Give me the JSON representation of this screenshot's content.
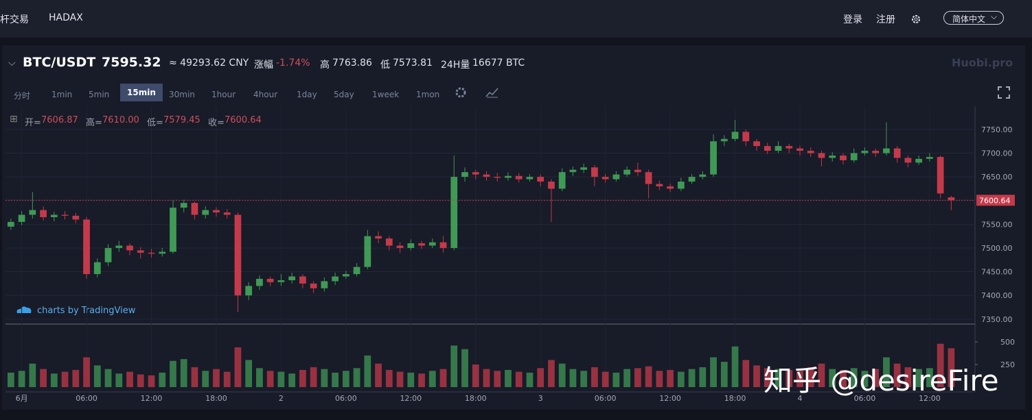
{
  "nav": {
    "left": [
      "杆交易",
      "HADAX"
    ],
    "right": [
      "登录",
      "注册"
    ],
    "language": "简体中文"
  },
  "ticker": {
    "pair": "BTC/USDT",
    "price": "7595.32",
    "cny": "≈ 49293.62 CNY",
    "change_label": "涨幅",
    "change": "-1.74%",
    "high_label": "高",
    "high": "7763.86",
    "low_label": "低",
    "low": "7573.81",
    "volume_label": "24H量",
    "volume": "16677 BTC"
  },
  "logo": "Huobi.pro",
  "intervals": [
    "分时",
    "1min",
    "5min",
    "15min",
    "30min",
    "1hour",
    "4hour",
    "1day",
    "5day",
    "1week",
    "1mon"
  ],
  "active_interval": "15min",
  "ohlc_legend": [
    {
      "label": "开=",
      "value": "7606.87"
    },
    {
      "label": "高=",
      "value": "7610.00"
    },
    {
      "label": "低=",
      "value": "7579.45"
    },
    {
      "label": "收=",
      "value": "7600.64"
    }
  ],
  "attribution": "charts by TradingView",
  "watermark": "知乎 @desireFire",
  "chart_data": {
    "type": "candlestick",
    "x": [
      -1,
      0,
      1,
      2,
      3,
      4,
      5,
      6,
      7,
      8,
      9,
      10,
      11,
      12,
      13,
      14,
      15,
      16,
      17,
      18,
      19,
      20,
      21,
      22,
      23,
      24,
      25,
      26,
      27,
      28,
      29,
      30,
      31,
      32,
      33,
      34,
      35,
      36,
      37,
      38,
      39,
      40,
      41,
      42,
      43,
      44,
      45,
      46,
      47,
      48,
      49,
      50,
      51,
      52,
      53,
      54,
      55,
      56,
      57,
      58,
      59,
      60,
      61,
      62,
      63,
      64,
      65,
      66,
      67,
      68,
      69,
      70,
      71,
      72,
      73,
      74,
      75,
      76,
      77,
      78,
      79,
      80,
      81,
      82,
      83,
      84,
      85,
      86
    ],
    "open": [
      7545,
      7555,
      7570,
      7580,
      7565,
      7570,
      7568,
      7560,
      7445,
      7470,
      7500,
      7505,
      7495,
      7490,
      7488,
      7492,
      7585,
      7595,
      7570,
      7580,
      7575,
      7570,
      7400,
      7420,
      7435,
      7428,
      7432,
      7440,
      7425,
      7415,
      7430,
      7440,
      7445,
      7460,
      7525,
      7520,
      7505,
      7500,
      7510,
      7505,
      7512,
      7500,
      7650,
      7660,
      7655,
      7650,
      7648,
      7652,
      7645,
      7650,
      7640,
      7625,
      7660,
      7665,
      7670,
      7650,
      7645,
      7655,
      7665,
      7660,
      7635,
      7630,
      7625,
      7640,
      7650,
      7655,
      7725,
      7730,
      7745,
      7725,
      7715,
      7705,
      7715,
      7710,
      7705,
      7700,
      7690,
      7695,
      7685,
      7700,
      7705,
      7700,
      7710,
      7690,
      7680,
      7688,
      7692,
      7606.87
    ],
    "high": [
      7562,
      7578,
      7618,
      7588,
      7576,
      7578,
      7574,
      7565,
      7478,
      7508,
      7515,
      7510,
      7502,
      7498,
      7500,
      7600,
      7602,
      7598,
      7588,
      7586,
      7582,
      7575,
      7428,
      7442,
      7440,
      7445,
      7448,
      7445,
      7430,
      7438,
      7448,
      7452,
      7468,
      7538,
      7535,
      7525,
      7512,
      7518,
      7515,
      7520,
      7525,
      7695,
      7670,
      7665,
      7662,
      7658,
      7660,
      7658,
      7656,
      7655,
      7645,
      7668,
      7672,
      7678,
      7675,
      7656,
      7662,
      7672,
      7680,
      7665,
      7642,
      7636,
      7648,
      7656,
      7662,
      7740,
      7738,
      7770,
      7750,
      7730,
      7722,
      7725,
      7720,
      7716,
      7712,
      7705,
      7702,
      7700,
      7710,
      7712,
      7710,
      7765,
      7715,
      7695,
      7695,
      7700,
      7695,
      7610
    ],
    "low": [
      7538,
      7548,
      7562,
      7558,
      7556,
      7560,
      7552,
      7435,
      7438,
      7462,
      7492,
      7485,
      7478,
      7480,
      7482,
      7488,
      7575,
      7560,
      7562,
      7566,
      7562,
      7365,
      7390,
      7412,
      7420,
      7420,
      7425,
      7415,
      7405,
      7408,
      7422,
      7435,
      7440,
      7455,
      7510,
      7495,
      7490,
      7495,
      7498,
      7500,
      7490,
      7495,
      7640,
      7645,
      7642,
      7640,
      7642,
      7638,
      7640,
      7630,
      7555,
      7620,
      7652,
      7658,
      7630,
      7638,
      7640,
      7650,
      7652,
      7605,
      7622,
      7618,
      7620,
      7635,
      7645,
      7650,
      7715,
      7725,
      7715,
      7705,
      7698,
      7700,
      7700,
      7695,
      7692,
      7672,
      7682,
      7676,
      7680,
      7695,
      7692,
      7695,
      7680,
      7670,
      7675,
      7682,
      7605,
      7579.45
    ],
    "close": [
      7555,
      7570,
      7580,
      7565,
      7570,
      7568,
      7560,
      7445,
      7470,
      7500,
      7505,
      7495,
      7490,
      7488,
      7492,
      7585,
      7595,
      7570,
      7580,
      7575,
      7570,
      7400,
      7420,
      7435,
      7428,
      7432,
      7440,
      7425,
      7415,
      7430,
      7440,
      7445,
      7460,
      7525,
      7520,
      7505,
      7500,
      7510,
      7505,
      7512,
      7500,
      7650,
      7660,
      7655,
      7650,
      7648,
      7652,
      7645,
      7650,
      7640,
      7625,
      7660,
      7665,
      7670,
      7650,
      7645,
      7655,
      7665,
      7660,
      7635,
      7630,
      7625,
      7640,
      7650,
      7655,
      7725,
      7730,
      7745,
      7725,
      7715,
      7705,
      7715,
      7710,
      7705,
      7700,
      7690,
      7695,
      7685,
      7700,
      7705,
      7700,
      7710,
      7690,
      7680,
      7688,
      7692,
      7615,
      7600.64
    ],
    "volume": [
      160,
      180,
      260,
      200,
      150,
      170,
      190,
      330,
      240,
      200,
      150,
      170,
      140,
      130,
      160,
      290,
      310,
      220,
      180,
      200,
      170,
      440,
      300,
      210,
      180,
      170,
      150,
      190,
      220,
      200,
      160,
      180,
      210,
      350,
      260,
      190,
      170,
      160,
      150,
      180,
      200,
      460,
      420,
      250,
      200,
      180,
      190,
      170,
      160,
      210,
      300,
      260,
      200,
      180,
      220,
      170,
      160,
      200,
      210,
      230,
      180,
      190,
      170,
      200,
      220,
      330,
      280,
      450,
      300,
      240,
      210,
      200,
      190,
      180,
      220,
      260,
      200,
      190,
      210,
      180,
      200,
      330,
      260,
      220,
      200,
      210,
      480,
      430
    ],
    "xlim": [
      -1.5,
      88.2
    ],
    "ylim": [
      7341,
      7799
    ],
    "yticks": [
      {
        "value": 7350,
        "label": "7350.00"
      },
      {
        "value": 7400,
        "label": "7400.00"
      },
      {
        "value": 7450,
        "label": "7450.00"
      },
      {
        "value": 7500,
        "label": "7500.00"
      },
      {
        "value": 7550,
        "label": "7550.00"
      },
      {
        "value": 7600,
        "label": "7600.00"
      },
      {
        "value": 7650,
        "label": "7650.00"
      },
      {
        "value": 7700,
        "label": "7700.00"
      },
      {
        "value": 7750,
        "label": "7750.00"
      }
    ],
    "xticks": [
      {
        "value": 0,
        "label": "6月"
      },
      {
        "value": 6,
        "label": "06:00"
      },
      {
        "value": 12,
        "label": "12:00"
      },
      {
        "value": 18,
        "label": "18:00"
      },
      {
        "value": 24,
        "label": "2"
      },
      {
        "value": 30,
        "label": "06:00"
      },
      {
        "value": 36,
        "label": "12:00"
      },
      {
        "value": 42,
        "label": "18:00"
      },
      {
        "value": 48,
        "label": "3"
      },
      {
        "value": 54,
        "label": "06:00"
      },
      {
        "value": 60,
        "label": "12:00"
      },
      {
        "value": 66,
        "label": "18:00"
      },
      {
        "value": 72,
        "label": "4"
      },
      {
        "value": 78,
        "label": "06:00"
      },
      {
        "value": 84,
        "label": "12:00"
      }
    ],
    "volume_lim": [
      0,
      682
    ],
    "volume_ticks": [
      250,
      500
    ],
    "up_color": "#3f9a55",
    "down_color": "#c43a4a",
    "grid": true
  }
}
